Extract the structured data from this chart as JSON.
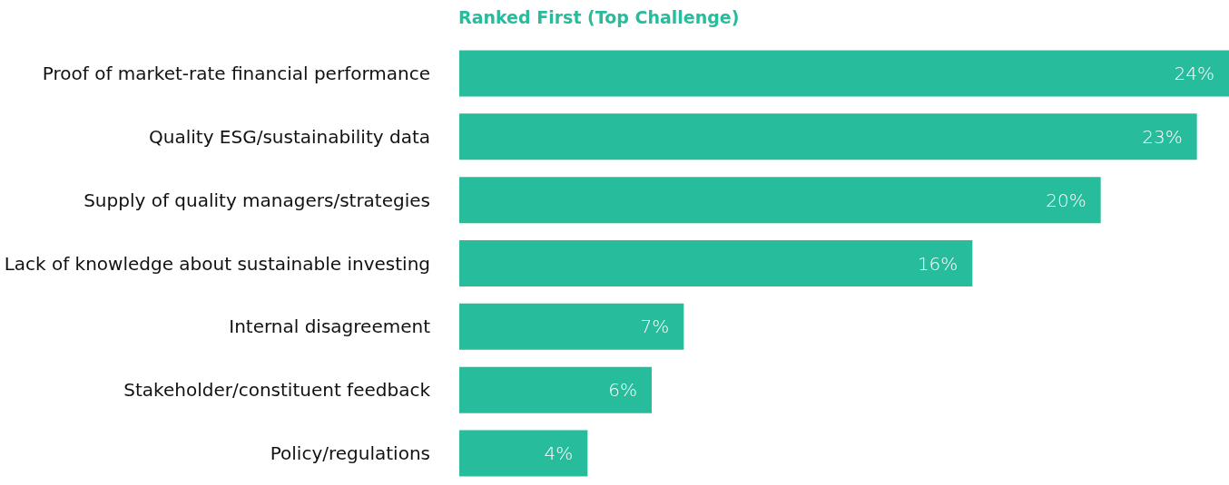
{
  "chart_data": {
    "type": "bar",
    "orientation": "horizontal",
    "title": "Ranked First (Top Challenge)",
    "categories": [
      "Proof of market-rate financial performance",
      "Quality ESG/sustainability data",
      "Supply of quality managers/strategies",
      "Lack of knowledge about sustainable investing",
      "Internal disagreement",
      "Stakeholder/constituent feedback",
      "Policy/regulations"
    ],
    "values": [
      24,
      23,
      20,
      16,
      7,
      6,
      4
    ],
    "value_labels": [
      "24%",
      "23%",
      "20%",
      "16%",
      "7%",
      "6%",
      "4%"
    ],
    "color": "#26bc9c"
  }
}
